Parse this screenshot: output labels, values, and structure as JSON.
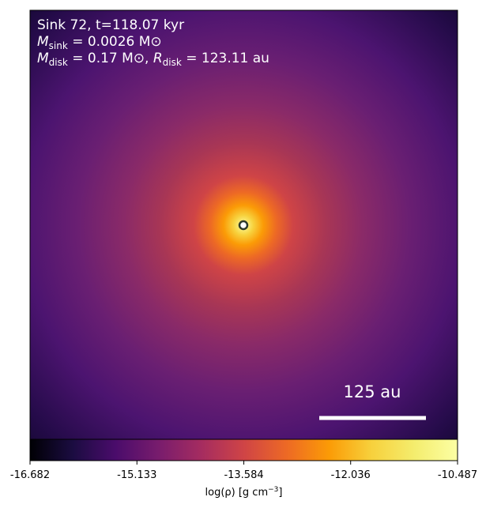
{
  "chart_data": {
    "type": "image",
    "annotations": [
      {
        "text": "Sink 72, t=118.07 kyr"
      },
      {
        "parts": [
          {
            "symbol": "M",
            "subscript": "sink",
            "text": " = 0.0026 M⊙"
          }
        ]
      },
      {
        "parts": [
          {
            "symbol": "M",
            "subscript": "disk",
            "text": " = 0.17 M⊙, "
          },
          {
            "symbol": "R",
            "subscript": "disk",
            "text": " = 123.11 au"
          }
        ]
      }
    ],
    "scale_bar": "125 au",
    "colorbar": {
      "lim": [
        -16.682,
        -10.487
      ],
      "ticks": [
        -16.682,
        -15.133,
        -13.584,
        -12.036,
        -10.487
      ],
      "label": {
        "text": "log(ρ) [g cm",
        "superscript": "−3",
        "end": "]"
      },
      "colormap": "inferno"
    }
  }
}
